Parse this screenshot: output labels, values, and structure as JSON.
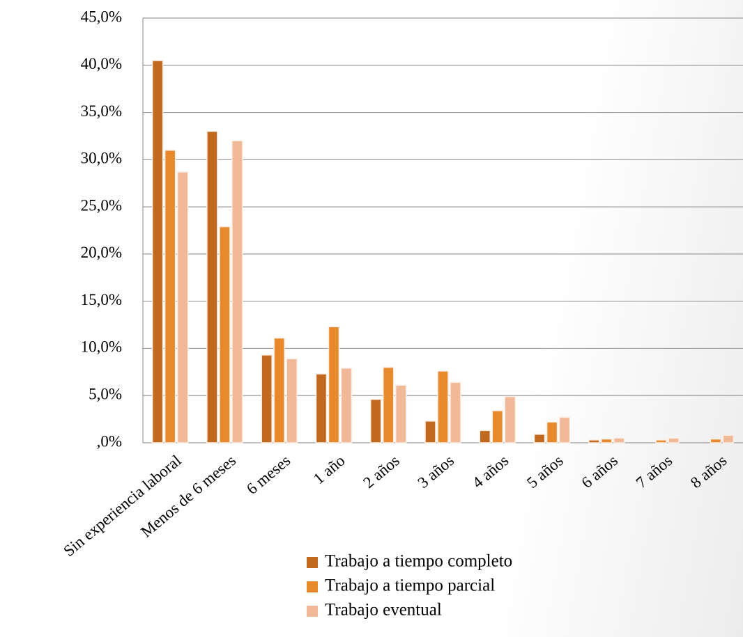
{
  "chart_data": {
    "type": "bar",
    "categories": [
      "Sin experiencia laboral",
      "Menos de 6 meses",
      "6 meses",
      "1 año",
      "2 años",
      "3 años",
      "4 años",
      "5 años",
      "6 años",
      "7 años",
      "8 años"
    ],
    "series": [
      {
        "name": "Trabajo a tiempo completo",
        "color": "#c0691f",
        "values": [
          40.5,
          33.0,
          9.3,
          7.3,
          4.6,
          2.3,
          1.3,
          0.9,
          0.3,
          0.0,
          0.0
        ]
      },
      {
        "name": "Trabajo a tiempo parcial",
        "color": "#e8892b",
        "values": [
          31.0,
          22.9,
          11.1,
          12.3,
          8.0,
          7.6,
          3.4,
          2.2,
          0.4,
          0.3,
          0.4
        ]
      },
      {
        "name": "Trabajo eventual",
        "color": "#f2b999",
        "values": [
          28.7,
          32.0,
          8.9,
          7.9,
          6.1,
          6.4,
          4.9,
          2.7,
          0.5,
          0.5,
          0.8
        ]
      }
    ],
    "ylim": [
      0,
      45
    ],
    "yticks": [
      {
        "value": 0,
        "label": ",0%"
      },
      {
        "value": 5,
        "label": "5,0%"
      },
      {
        "value": 10,
        "label": "10,0%"
      },
      {
        "value": 15,
        "label": "15,0%"
      },
      {
        "value": 20,
        "label": "20,0%"
      },
      {
        "value": 25,
        "label": "25,0%"
      },
      {
        "value": 30,
        "label": "30,0%"
      },
      {
        "value": 35,
        "label": "35,0%"
      },
      {
        "value": 40,
        "label": "40,0%"
      },
      {
        "value": 45,
        "label": "45,0%"
      }
    ],
    "grid": true,
    "legend": "bottom"
  }
}
